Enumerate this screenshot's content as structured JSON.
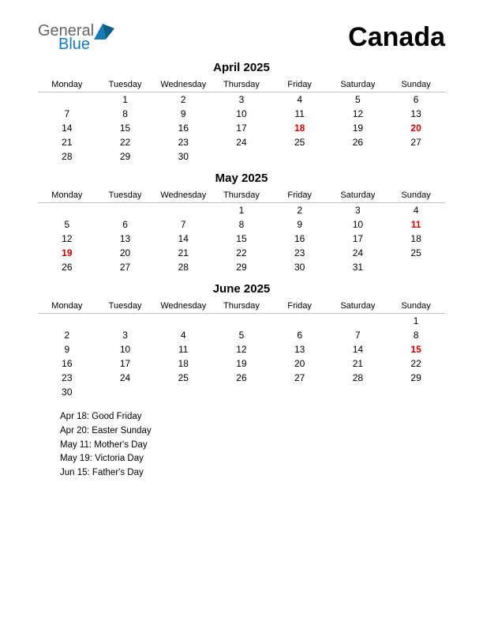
{
  "logo": {
    "general": "General",
    "blue": "Blue"
  },
  "country": "Canada",
  "colors": {
    "holiday": "#cc0000",
    "logo_blue": "#1a7ab5",
    "logo_gray": "#666666",
    "border": "#c0c0c0",
    "text": "#000000",
    "bg": "#ffffff"
  },
  "dayHeaders": [
    "Monday",
    "Tuesday",
    "Wednesday",
    "Thursday",
    "Friday",
    "Saturday",
    "Sunday"
  ],
  "months": [
    {
      "title": "April 2025",
      "weeks": [
        [
          "",
          "1",
          "2",
          "3",
          "4",
          "5",
          "6"
        ],
        [
          "7",
          "8",
          "9",
          "10",
          "11",
          "12",
          "13"
        ],
        [
          "14",
          "15",
          "16",
          "17",
          "18",
          "19",
          "20"
        ],
        [
          "21",
          "22",
          "23",
          "24",
          "25",
          "26",
          "27"
        ],
        [
          "28",
          "29",
          "30",
          "",
          "",
          "",
          ""
        ]
      ],
      "holidays": [
        "18",
        "20"
      ]
    },
    {
      "title": "May 2025",
      "weeks": [
        [
          "",
          "",
          "",
          "1",
          "2",
          "3",
          "4"
        ],
        [
          "5",
          "6",
          "7",
          "8",
          "9",
          "10",
          "11"
        ],
        [
          "12",
          "13",
          "14",
          "15",
          "16",
          "17",
          "18"
        ],
        [
          "19",
          "20",
          "21",
          "22",
          "23",
          "24",
          "25"
        ],
        [
          "26",
          "27",
          "28",
          "29",
          "30",
          "31",
          ""
        ]
      ],
      "holidays": [
        "11",
        "19"
      ]
    },
    {
      "title": "June 2025",
      "weeks": [
        [
          "",
          "",
          "",
          "",
          "",
          "",
          "1"
        ],
        [
          "2",
          "3",
          "4",
          "5",
          "6",
          "7",
          "8"
        ],
        [
          "9",
          "10",
          "11",
          "12",
          "13",
          "14",
          "15"
        ],
        [
          "16",
          "17",
          "18",
          "19",
          "20",
          "21",
          "22"
        ],
        [
          "23",
          "24",
          "25",
          "26",
          "27",
          "28",
          "29"
        ],
        [
          "30",
          "",
          "",
          "",
          "",
          "",
          ""
        ]
      ],
      "holidays": [
        "15"
      ]
    }
  ],
  "holidayList": [
    "Apr 18: Good Friday",
    "Apr 20: Easter Sunday",
    "May 11: Mother's Day",
    "May 19: Victoria Day",
    "Jun 15: Father's Day"
  ]
}
